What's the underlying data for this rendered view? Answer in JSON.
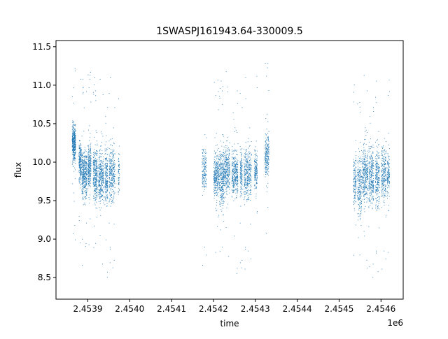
{
  "chart_data": {
    "type": "scatter",
    "title": "1SWASPJ161943.64-330009.5",
    "xlabel": "time",
    "ylabel": "flux",
    "x_offset_label": "1e6",
    "xlim": [
      2453824,
      2454653
    ],
    "ylim": [
      8.22,
      11.58
    ],
    "x_ticks": [
      2453900,
      2454000,
      2454100,
      2454200,
      2454300,
      2454400,
      2454500,
      2454600
    ],
    "x_tick_labels": [
      "2.4539",
      "2.4540",
      "2.4541",
      "2.4542",
      "2.4543",
      "2.4544",
      "2.4545",
      "2.4546"
    ],
    "y_ticks": [
      8.5,
      9.0,
      9.5,
      10.0,
      10.5,
      11.0,
      11.5
    ],
    "y_tick_labels": [
      "8.5",
      "9.0",
      "9.5",
      "10.0",
      "10.5",
      "11.0",
      "11.5"
    ],
    "grid": false,
    "marker_color": "#1f77b4",
    "series": [
      {
        "clusters": [
          {
            "x_start": 2453862,
            "x_end": 2453870,
            "y_center": 10.25,
            "y_spread": 0.16,
            "n": 420
          },
          {
            "x_start": 2453878,
            "x_end": 2453884,
            "y_center": 10.0,
            "y_spread": 0.2,
            "n": 220
          },
          {
            "x_start": 2453885,
            "x_end": 2453897,
            "y_center": 9.85,
            "y_spread": 0.22,
            "n": 380
          },
          {
            "x_start": 2453899,
            "x_end": 2453907,
            "y_center": 9.95,
            "y_spread": 0.2,
            "n": 260
          },
          {
            "x_start": 2453912,
            "x_end": 2453922,
            "y_center": 9.85,
            "y_spread": 0.24,
            "n": 320
          },
          {
            "x_start": 2453925,
            "x_end": 2453937,
            "y_center": 9.8,
            "y_spread": 0.24,
            "n": 320
          },
          {
            "x_start": 2453940,
            "x_end": 2453947,
            "y_center": 9.8,
            "y_spread": 0.24,
            "n": 200
          },
          {
            "x_start": 2453950,
            "x_end": 2453964,
            "y_center": 9.85,
            "y_spread": 0.24,
            "n": 300
          },
          {
            "x_start": 2453972,
            "x_end": 2453975,
            "y_center": 9.85,
            "y_spread": 0.22,
            "n": 60
          },
          {
            "x_start": 2454172,
            "x_end": 2454183,
            "y_center": 9.9,
            "y_spread": 0.18,
            "n": 160
          },
          {
            "x_start": 2454200,
            "x_end": 2454212,
            "y_center": 9.85,
            "y_spread": 0.22,
            "n": 300
          },
          {
            "x_start": 2454213,
            "x_end": 2454225,
            "y_center": 9.8,
            "y_spread": 0.26,
            "n": 320
          },
          {
            "x_start": 2454226,
            "x_end": 2454238,
            "y_center": 9.9,
            "y_spread": 0.22,
            "n": 280
          },
          {
            "x_start": 2454243,
            "x_end": 2454258,
            "y_center": 9.85,
            "y_spread": 0.2,
            "n": 320
          },
          {
            "x_start": 2454263,
            "x_end": 2454268,
            "y_center": 9.85,
            "y_spread": 0.2,
            "n": 140
          },
          {
            "x_start": 2454272,
            "x_end": 2454290,
            "y_center": 9.85,
            "y_spread": 0.22,
            "n": 340
          },
          {
            "x_start": 2454297,
            "x_end": 2454304,
            "y_center": 9.9,
            "y_spread": 0.2,
            "n": 160
          },
          {
            "x_start": 2454322,
            "x_end": 2454332,
            "y_center": 10.1,
            "y_spread": 0.2,
            "n": 220
          },
          {
            "x_start": 2454533,
            "x_end": 2454540,
            "y_center": 9.75,
            "y_spread": 0.22,
            "n": 140
          },
          {
            "x_start": 2454543,
            "x_end": 2454553,
            "y_center": 9.7,
            "y_spread": 0.28,
            "n": 220
          },
          {
            "x_start": 2454555,
            "x_end": 2454568,
            "y_center": 9.85,
            "y_spread": 0.26,
            "n": 320
          },
          {
            "x_start": 2454570,
            "x_end": 2454582,
            "y_center": 9.8,
            "y_spread": 0.26,
            "n": 280
          },
          {
            "x_start": 2454586,
            "x_end": 2454596,
            "y_center": 9.8,
            "y_spread": 0.26,
            "n": 240
          },
          {
            "x_start": 2454600,
            "x_end": 2454612,
            "y_center": 9.85,
            "y_spread": 0.24,
            "n": 240
          },
          {
            "x_start": 2454614,
            "x_end": 2454620,
            "y_center": 9.85,
            "y_spread": 0.22,
            "n": 120
          }
        ]
      }
    ]
  }
}
